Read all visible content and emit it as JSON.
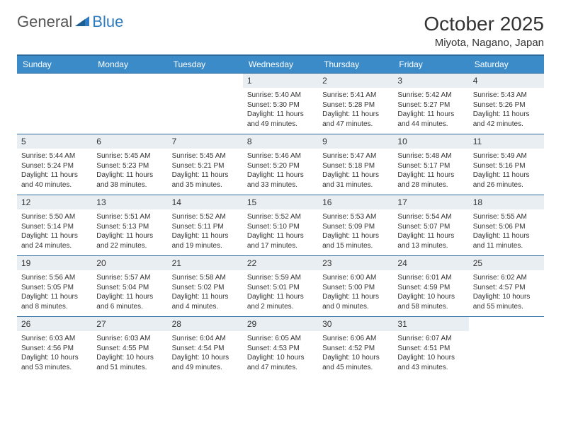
{
  "logo": {
    "part1": "General",
    "part2": "Blue"
  },
  "title": "October 2025",
  "location": "Miyota, Nagano, Japan",
  "colors": {
    "header_bg": "#3b8bc9",
    "header_border": "#2a6a9e",
    "daynum_bg": "#e9eef2",
    "text": "#333333",
    "logo_blue": "#2e7bbf"
  },
  "daynames": [
    "Sunday",
    "Monday",
    "Tuesday",
    "Wednesday",
    "Thursday",
    "Friday",
    "Saturday"
  ],
  "weeks": [
    [
      null,
      null,
      null,
      {
        "n": "1",
        "sr": "5:40 AM",
        "ss": "5:30 PM",
        "dl": "11 hours and 49 minutes."
      },
      {
        "n": "2",
        "sr": "5:41 AM",
        "ss": "5:28 PM",
        "dl": "11 hours and 47 minutes."
      },
      {
        "n": "3",
        "sr": "5:42 AM",
        "ss": "5:27 PM",
        "dl": "11 hours and 44 minutes."
      },
      {
        "n": "4",
        "sr": "5:43 AM",
        "ss": "5:26 PM",
        "dl": "11 hours and 42 minutes."
      }
    ],
    [
      {
        "n": "5",
        "sr": "5:44 AM",
        "ss": "5:24 PM",
        "dl": "11 hours and 40 minutes."
      },
      {
        "n": "6",
        "sr": "5:45 AM",
        "ss": "5:23 PM",
        "dl": "11 hours and 38 minutes."
      },
      {
        "n": "7",
        "sr": "5:45 AM",
        "ss": "5:21 PM",
        "dl": "11 hours and 35 minutes."
      },
      {
        "n": "8",
        "sr": "5:46 AM",
        "ss": "5:20 PM",
        "dl": "11 hours and 33 minutes."
      },
      {
        "n": "9",
        "sr": "5:47 AM",
        "ss": "5:18 PM",
        "dl": "11 hours and 31 minutes."
      },
      {
        "n": "10",
        "sr": "5:48 AM",
        "ss": "5:17 PM",
        "dl": "11 hours and 28 minutes."
      },
      {
        "n": "11",
        "sr": "5:49 AM",
        "ss": "5:16 PM",
        "dl": "11 hours and 26 minutes."
      }
    ],
    [
      {
        "n": "12",
        "sr": "5:50 AM",
        "ss": "5:14 PM",
        "dl": "11 hours and 24 minutes."
      },
      {
        "n": "13",
        "sr": "5:51 AM",
        "ss": "5:13 PM",
        "dl": "11 hours and 22 minutes."
      },
      {
        "n": "14",
        "sr": "5:52 AM",
        "ss": "5:11 PM",
        "dl": "11 hours and 19 minutes."
      },
      {
        "n": "15",
        "sr": "5:52 AM",
        "ss": "5:10 PM",
        "dl": "11 hours and 17 minutes."
      },
      {
        "n": "16",
        "sr": "5:53 AM",
        "ss": "5:09 PM",
        "dl": "11 hours and 15 minutes."
      },
      {
        "n": "17",
        "sr": "5:54 AM",
        "ss": "5:07 PM",
        "dl": "11 hours and 13 minutes."
      },
      {
        "n": "18",
        "sr": "5:55 AM",
        "ss": "5:06 PM",
        "dl": "11 hours and 11 minutes."
      }
    ],
    [
      {
        "n": "19",
        "sr": "5:56 AM",
        "ss": "5:05 PM",
        "dl": "11 hours and 8 minutes."
      },
      {
        "n": "20",
        "sr": "5:57 AM",
        "ss": "5:04 PM",
        "dl": "11 hours and 6 minutes."
      },
      {
        "n": "21",
        "sr": "5:58 AM",
        "ss": "5:02 PM",
        "dl": "11 hours and 4 minutes."
      },
      {
        "n": "22",
        "sr": "5:59 AM",
        "ss": "5:01 PM",
        "dl": "11 hours and 2 minutes."
      },
      {
        "n": "23",
        "sr": "6:00 AM",
        "ss": "5:00 PM",
        "dl": "11 hours and 0 minutes."
      },
      {
        "n": "24",
        "sr": "6:01 AM",
        "ss": "4:59 PM",
        "dl": "10 hours and 58 minutes."
      },
      {
        "n": "25",
        "sr": "6:02 AM",
        "ss": "4:57 PM",
        "dl": "10 hours and 55 minutes."
      }
    ],
    [
      {
        "n": "26",
        "sr": "6:03 AM",
        "ss": "4:56 PM",
        "dl": "10 hours and 53 minutes."
      },
      {
        "n": "27",
        "sr": "6:03 AM",
        "ss": "4:55 PM",
        "dl": "10 hours and 51 minutes."
      },
      {
        "n": "28",
        "sr": "6:04 AM",
        "ss": "4:54 PM",
        "dl": "10 hours and 49 minutes."
      },
      {
        "n": "29",
        "sr": "6:05 AM",
        "ss": "4:53 PM",
        "dl": "10 hours and 47 minutes."
      },
      {
        "n": "30",
        "sr": "6:06 AM",
        "ss": "4:52 PM",
        "dl": "10 hours and 45 minutes."
      },
      {
        "n": "31",
        "sr": "6:07 AM",
        "ss": "4:51 PM",
        "dl": "10 hours and 43 minutes."
      },
      null
    ]
  ],
  "labels": {
    "sunrise": "Sunrise:",
    "sunset": "Sunset:",
    "daylight": "Daylight:"
  }
}
